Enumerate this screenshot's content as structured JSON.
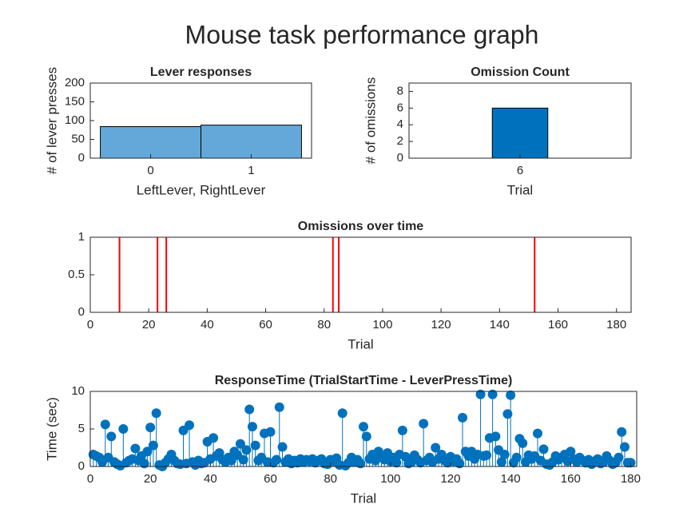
{
  "title": "Mouse task performance graph",
  "chart_data": [
    {
      "type": "bar",
      "title": "Lever responses",
      "x_label": "LeftLever, RightLever",
      "y_label": "# of lever presses",
      "x": [
        0,
        1
      ],
      "values": [
        84,
        88
      ],
      "color": "#64a8d9",
      "xlim": [
        -0.6,
        1.6
      ],
      "xticks": [
        0,
        1
      ],
      "ylim": [
        0,
        200
      ],
      "yticks": [
        0,
        50,
        100,
        150,
        200
      ]
    },
    {
      "type": "histogram",
      "title": "Omission Count",
      "x_label": "Trial",
      "y_label": "# of omissions",
      "bins": [
        5.5,
        6.5
      ],
      "values": [
        6
      ],
      "color": "#0072bd",
      "xlim": [
        4,
        8
      ],
      "xticks": [
        6
      ],
      "ylim": [
        0,
        9
      ],
      "yticks": [
        0,
        2,
        4,
        6,
        8
      ]
    },
    {
      "type": "stem",
      "title": "Omissions over time",
      "x_label": "Trial",
      "marker": false,
      "x": [
        10,
        23,
        26,
        83,
        85,
        152
      ],
      "values": [
        1,
        1,
        1,
        1,
        1,
        1
      ],
      "color": "#ff0000",
      "xlim": [
        0,
        185
      ],
      "xticks": [
        0,
        20,
        40,
        60,
        80,
        100,
        120,
        140,
        160,
        180
      ],
      "ylim": [
        0,
        1
      ],
      "yticks": [
        0,
        0.5,
        1
      ]
    },
    {
      "type": "stem",
      "title": "ResponseTime (TrialStartTime - LeverPressTime)",
      "x_label": "Trial",
      "y_label": "Time (sec)",
      "marker": true,
      "x": [
        1,
        2,
        3,
        4,
        5,
        6,
        7,
        8,
        9,
        10,
        11,
        12,
        13,
        14,
        15,
        16,
        17,
        18,
        19,
        20,
        21,
        22,
        23,
        24,
        25,
        26,
        27,
        28,
        29,
        30,
        31,
        32,
        33,
        34,
        35,
        36,
        37,
        38,
        39,
        40,
        41,
        42,
        43,
        44,
        45,
        46,
        47,
        48,
        49,
        50,
        51,
        52,
        53,
        54,
        55,
        56,
        57,
        58,
        59,
        60,
        61,
        62,
        63,
        64,
        65,
        66,
        67,
        68,
        69,
        70,
        71,
        72,
        73,
        74,
        75,
        76,
        77,
        78,
        79,
        80,
        81,
        82,
        83,
        84,
        85,
        86,
        87,
        88,
        89,
        90,
        91,
        92,
        93,
        94,
        95,
        96,
        97,
        98,
        99,
        100,
        101,
        102,
        103,
        104,
        105,
        106,
        107,
        108,
        109,
        110,
        111,
        112,
        113,
        114,
        115,
        116,
        117,
        118,
        119,
        120,
        121,
        122,
        123,
        124,
        125,
        126,
        127,
        128,
        129,
        130,
        131,
        132,
        133,
        134,
        135,
        136,
        137,
        138,
        139,
        140,
        141,
        142,
        143,
        144,
        145,
        146,
        147,
        148,
        149,
        150,
        151,
        152,
        153,
        154,
        155,
        156,
        157,
        158,
        159,
        160,
        161,
        162,
        163,
        164,
        165,
        166,
        167,
        168,
        169,
        170,
        171,
        172,
        173,
        174,
        175,
        176,
        177,
        178,
        179,
        180
      ],
      "values": [
        1.6,
        1.4,
        1.2,
        0.6,
        5.6,
        1.2,
        4.0,
        0.6,
        0.3,
        0.1,
        5.0,
        0.5,
        0.8,
        1.0,
        2.4,
        0.8,
        1.4,
        0.4,
        2.0,
        5.2,
        2.8,
        7.1,
        0.2,
        0.0,
        0.5,
        1.0,
        1.6,
        0.8,
        0.4,
        0.3,
        4.8,
        0.4,
        5.5,
        0.6,
        0.2,
        0.8,
        0.4,
        0.5,
        3.3,
        1.0,
        3.8,
        1.4,
        1.8,
        0.9,
        0.6,
        1.2,
        0.8,
        2.0,
        1.5,
        3.0,
        0.9,
        2.2,
        7.6,
        5.3,
        2.8,
        0.8,
        1.2,
        4.4,
        0.6,
        4.6,
        0.5,
        0.9,
        7.9,
        2.6,
        0.6,
        1.0,
        0.4,
        0.8,
        0.5,
        1.0,
        0.6,
        0.9,
        0.7,
        1.0,
        0.5,
        0.8,
        1.0,
        0.4,
        0.3,
        0.9,
        0.7,
        1.1,
        0.2,
        7.1,
        0.1,
        0.5,
        1.2,
        0.6,
        0.9,
        0.4,
        5.3,
        4.0,
        1.0,
        1.6,
        0.8,
        2.0,
        1.4,
        0.9,
        1.8,
        0.7,
        1.2,
        0.5,
        1.6,
        4.8,
        1.3,
        0.4,
        0.6,
        1.5,
        0.9,
        0.5,
        5.7,
        0.8,
        1.2,
        0.6,
        2.5,
        1.0,
        1.6,
        0.8,
        0.5,
        1.3,
        0.7,
        1.0,
        0.4,
        6.5,
        2.0,
        1.4,
        2.0,
        1.0,
        1.6,
        9.6,
        1.4,
        1.5,
        3.8,
        9.6,
        4.0,
        2.2,
        0.6,
        1.6,
        7.0,
        9.5,
        0.5,
        1.2,
        3.7,
        3.1,
        0.6,
        1.5,
        1.0,
        1.4,
        4.4,
        0.8,
        2.3,
        0.3,
        0.2,
        0.6,
        1.4,
        0.9,
        1.2,
        1.6,
        0.7,
        2.0,
        1.0,
        0.6,
        1.2,
        0.8,
        0.5,
        0.9,
        0.3,
        0.7,
        1.0,
        0.4,
        0.6,
        1.4,
        0.8,
        0.3,
        0.5,
        1.2,
        4.6,
        2.6,
        0.5,
        0.5
      ],
      "color": "#0072bd",
      "xlim": [
        0,
        182
      ],
      "xticks": [
        0,
        20,
        40,
        60,
        80,
        100,
        120,
        140,
        160,
        180
      ],
      "ylim": [
        0,
        10
      ],
      "yticks": [
        0,
        5,
        10
      ]
    }
  ]
}
